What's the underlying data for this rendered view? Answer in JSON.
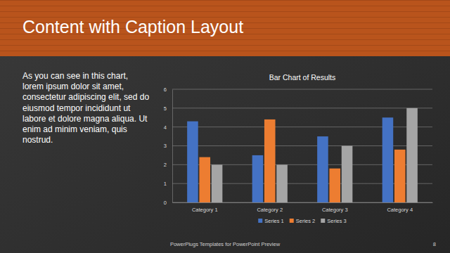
{
  "slide": {
    "title": "Content with Caption Layout",
    "caption": [
      "As you can see in this chart,",
      "lorem ipsum dolor sit amet,",
      "consectetur adipiscing elit, sed do",
      "eiusmod tempor incididunt ut",
      "labore et dolore magna aliqua. Ut",
      "enim ad minim veniam, quis",
      "nostrud."
    ],
    "footer": "PowerPlugs Templates for PowerPoint Preview",
    "page_number": "8"
  },
  "chart_data": {
    "type": "bar",
    "title": "Bar Chart of Results",
    "categories": [
      "Category 1",
      "Category 2",
      "Category 3",
      "Category 4"
    ],
    "series": [
      {
        "name": "Series 1",
        "color": "#4472c4",
        "values": [
          4.3,
          2.5,
          3.5,
          4.5
        ]
      },
      {
        "name": "Series 2",
        "color": "#ed7d31",
        "values": [
          2.4,
          4.4,
          1.8,
          2.8
        ]
      },
      {
        "name": "Series 3",
        "color": "#a5a5a5",
        "values": [
          2,
          2,
          3,
          5
        ]
      }
    ],
    "ylim": [
      0,
      6
    ],
    "yticks": [
      0,
      1,
      2,
      3,
      4,
      5,
      6
    ],
    "grid": true,
    "legend": "bottom"
  }
}
